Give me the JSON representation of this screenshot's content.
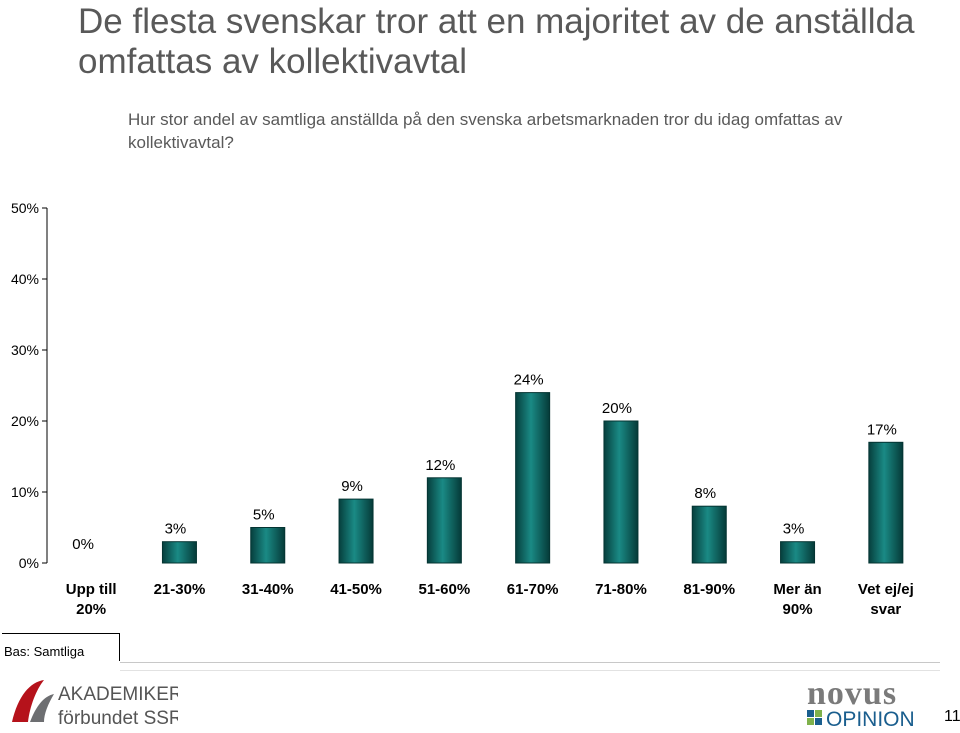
{
  "title": "De flesta svenskar tror att en majoritet av de anställda omfattas av kollektivavtal",
  "subtitle": "Hur stor andel av samtliga anställda på den svenska arbetsmarknaden tror du idag omfattas av kollektivavtal?",
  "footer": {
    "bas": "Bas: Samtliga",
    "page_number": "11",
    "left_logo_line1": "AKADEMIKER",
    "left_logo_line2": "förbundet SSR",
    "right_logo_line1": "novus",
    "right_logo_line2": "OPINION"
  },
  "chart_data": {
    "type": "bar",
    "categories": [
      "Upp till 20%",
      "21-30%",
      "31-40%",
      "41-50%",
      "51-60%",
      "61-70%",
      "71-80%",
      "81-90%",
      "Mer än 90%",
      "Vet ej/ej svar"
    ],
    "values": [
      0,
      3,
      5,
      9,
      12,
      24,
      20,
      8,
      3,
      17
    ],
    "value_labels": [
      "0%",
      "3%",
      "5%",
      "9%",
      "12%",
      "24%",
      "20%",
      "8%",
      "3%",
      "17%"
    ],
    "y_ticks": [
      "0%",
      "10%",
      "20%",
      "30%",
      "40%",
      "50%"
    ],
    "ylim": [
      0,
      50
    ],
    "bar_color": "#0b6b67",
    "grid": false
  }
}
